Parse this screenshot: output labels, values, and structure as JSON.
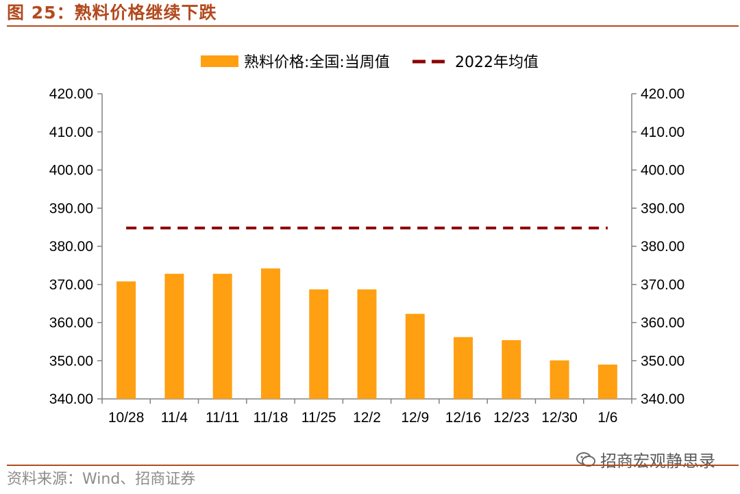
{
  "figure": {
    "title": "图 25：熟料价格继续下跌",
    "source": "资料来源：Wind、招商证券",
    "watermark": "招商宏观静思录"
  },
  "colors": {
    "bar": "#ff9f12",
    "avg_line": "#8b0000",
    "accent": "#b24a1e",
    "axis": "#808080"
  },
  "chart_data": {
    "type": "bar",
    "categories": [
      "10/28",
      "11/4",
      "11/11",
      "11/18",
      "11/25",
      "12/2",
      "12/9",
      "12/16",
      "12/23",
      "12/30",
      "1/6"
    ],
    "series": [
      {
        "name": "熟料价格:全国:当周值",
        "type": "bar",
        "values": [
          370.8,
          372.8,
          372.8,
          374.2,
          368.7,
          368.7,
          362.3,
          356.2,
          355.4,
          350.1,
          349.0
        ]
      },
      {
        "name": "2022年均值",
        "type": "line-dashed",
        "values": [
          384.8,
          384.8,
          384.8,
          384.8,
          384.8,
          384.8,
          384.8,
          384.8,
          384.8,
          384.8,
          384.8
        ]
      }
    ],
    "ylim": [
      340,
      420
    ],
    "yticks": [
      "340.00",
      "350.00",
      "360.00",
      "370.00",
      "380.00",
      "390.00",
      "400.00",
      "410.00",
      "420.00"
    ],
    "secondary_yticks": [
      "340.00",
      "350.00",
      "360.00",
      "370.00",
      "380.00",
      "390.00",
      "400.00",
      "410.00",
      "420.00"
    ],
    "legend_position": "top-center",
    "grid": false
  }
}
